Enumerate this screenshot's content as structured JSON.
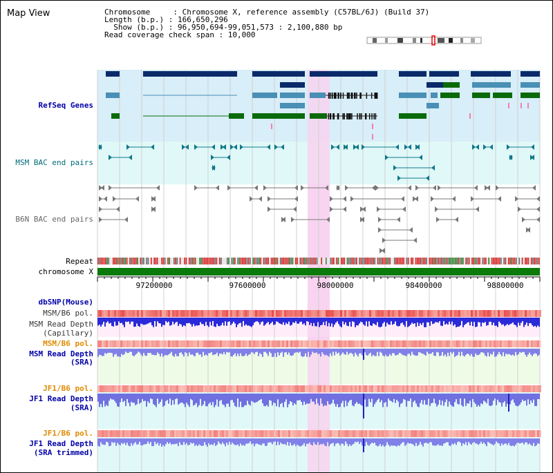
{
  "page": {
    "title": "Map View"
  },
  "header": {
    "chromosome": "Chromosome     : Chromosome X, reference assembly (C57BL/6J) (Build 37)",
    "length": "Length (b.p.) : 166,650,296",
    "show": "  Show (b.p.) : 96,950,694-99,051,573 : 2,100,880 bp",
    "coverage": "Read coverage check span : 10,000"
  },
  "tracks": {
    "refseq": "RefSeq Genes",
    "msm_bac": "MSM BAC end pairs",
    "b6n_bac": "B6N BAC end pairs",
    "repeat": "Repeat",
    "chromosome": "chromosome X",
    "dbsnp": "dbSNP(Mouse)",
    "msm_pol": "MSM/B6 pol.",
    "msm_depth_cap_1": "MSM Read Depth",
    "msm_depth_cap_2": "(Capillary)",
    "msm_pol_sra": "MSM/B6 pol.",
    "msm_depth_sra_1": "MSM Read Depth",
    "msm_depth_sra_2": "(SRA)",
    "jf1_pol": "JF1/B6 pol.",
    "jf1_depth_1": "JF1 Read Depth",
    "jf1_depth_2": "(SRA)",
    "jf1_pol_trim": "JF1/B6 pol.",
    "jf1_trim_1": "JF1 Read Depth",
    "jf1_trim_2": "(SRA trimmed)"
  },
  "axis": {
    "ticks": [
      "97200000",
      "97600000",
      "98000000",
      "98400000",
      "98800000"
    ]
  },
  "colors": {
    "navy": "#0a2a6a",
    "steel": "#4a8fb5",
    "green": "#0a6a0a",
    "highlight": "#f8d4f0",
    "refseq_bg": "#d8eef8",
    "bac_bg": "#e0f8f8",
    "depth_blue": "#2a2ad8",
    "depth_light": "#8080e8",
    "pol_red": "#f08080"
  }
}
